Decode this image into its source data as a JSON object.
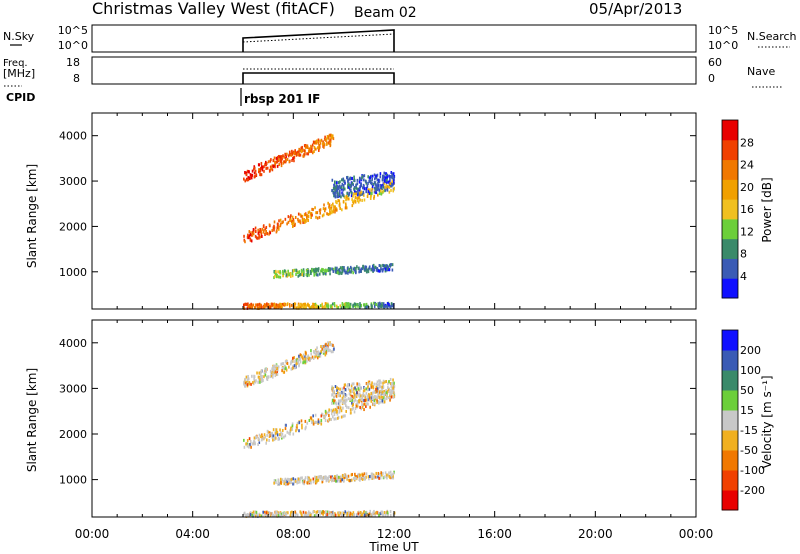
{
  "header": {
    "station_title": "Christmas Valley West (fitACF)",
    "beam": "Beam 02",
    "date": "05/Apr/2013"
  },
  "noise_panel": {
    "left_label": "N.Sky",
    "left_ticks": [
      "10^5",
      "10^0"
    ],
    "right_ticks": [
      "10^5",
      "10^0"
    ],
    "right_label": "N.Search"
  },
  "freq_panel": {
    "left_label_top": "Freq.",
    "left_label_bottom": "[MHz]",
    "left_ticks": [
      "18",
      "8"
    ],
    "right_ticks": [
      "60",
      "0"
    ],
    "right_label": "Nave"
  },
  "cpid": {
    "label": "CPID",
    "program": "rbsp 201 IF"
  },
  "colors": {
    "power_scale": [
      "#1010ff",
      "#3a5bb5",
      "#3a8a6a",
      "#6ccf3a",
      "#f0c020",
      "#f0a000",
      "#f07800",
      "#f04000",
      "#e80000"
    ],
    "velocity_scale": [
      "#e80000",
      "#f04000",
      "#f07800",
      "#f0b020",
      "#c8c8c8",
      "#6ccf3a",
      "#3a8a6a",
      "#3a5bb5",
      "#1010ff"
    ]
  },
  "chart_data": [
    {
      "type": "heatmap",
      "name": "power-panel",
      "ylabel": "Slant Range [km]",
      "yticks": [
        1000,
        2000,
        3000,
        4000
      ],
      "ylim": [
        180,
        4500
      ],
      "xlim": [
        0,
        24
      ],
      "data_time_range": [
        6,
        12
      ],
      "colorbar": {
        "label": "Power [dB]",
        "ticks": [
          4,
          8,
          12,
          16,
          20,
          24,
          28
        ],
        "range": [
          0,
          32
        ]
      }
    },
    {
      "type": "heatmap",
      "name": "velocity-panel",
      "ylabel": "Slant Range [km]",
      "yticks": [
        1000,
        2000,
        3000,
        4000
      ],
      "ylim": [
        180,
        4500
      ],
      "xlim": [
        0,
        24
      ],
      "data_time_range": [
        6,
        12
      ],
      "colorbar": {
        "label": "Velocity [m s⁻¹]",
        "ticks": [
          -200,
          -100,
          -50,
          -15,
          15,
          50,
          100,
          200
        ]
      }
    }
  ],
  "xaxis": {
    "label": "Time UT",
    "ticks": [
      "00:00",
      "04:00",
      "08:00",
      "12:00",
      "16:00",
      "20:00",
      "00:00"
    ],
    "tick_hours": [
      0,
      4,
      8,
      12,
      16,
      20,
      24
    ]
  }
}
